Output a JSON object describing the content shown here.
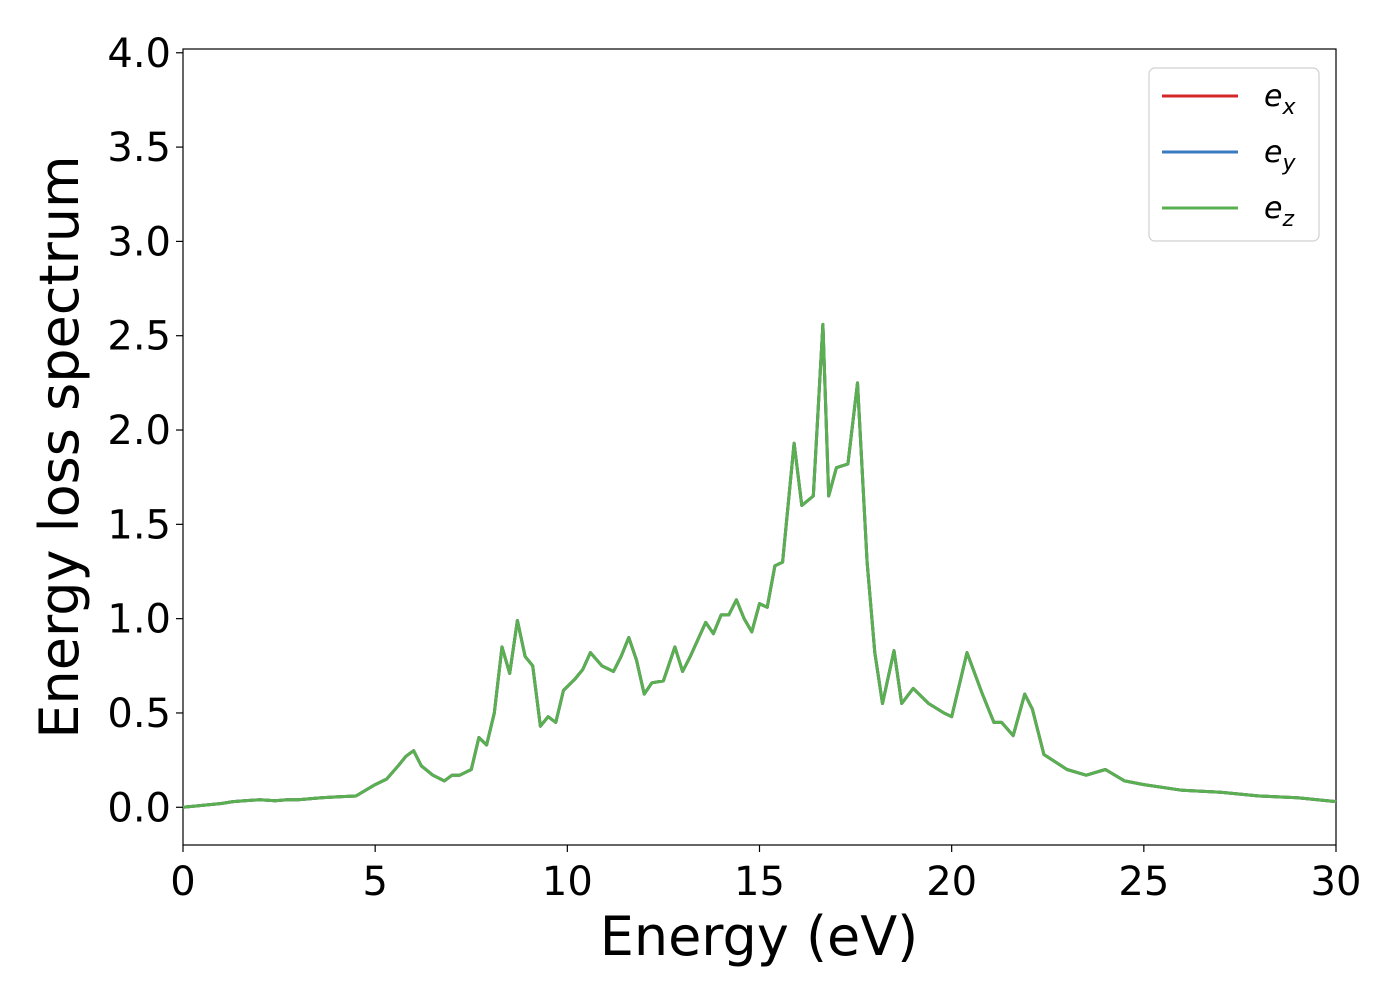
{
  "chart_data": {
    "type": "line",
    "xlabel": "Energy (eV)",
    "ylabel": "Energy loss spectrum",
    "xlim": [
      0,
      30
    ],
    "ylim": [
      -0.2,
      4.02
    ],
    "xticks": [
      0,
      5,
      10,
      15,
      20,
      25,
      30
    ],
    "xtick_labels": [
      "0",
      "5",
      "10",
      "15",
      "20",
      "25",
      "30"
    ],
    "yticks": [
      0.0,
      0.5,
      1.0,
      1.5,
      2.0,
      2.5,
      3.0,
      3.5,
      4.0
    ],
    "ytick_labels": [
      "0.0",
      "0.5",
      "1.0",
      "1.5",
      "2.0",
      "2.5",
      "3.0",
      "3.5",
      "4.0"
    ],
    "grid": false,
    "legend_position": "top-right",
    "series": [
      {
        "name": "e_x",
        "label_base": "e",
        "label_sub": "x",
        "color": "#d62728"
      },
      {
        "name": "e_y",
        "label_base": "e",
        "label_sub": "y",
        "color": "#3a7bbf"
      },
      {
        "name": "e_z",
        "label_base": "e",
        "label_sub": "z",
        "color": "#5aaf50"
      }
    ],
    "x": [
      0,
      0.5,
      1.0,
      1.3,
      1.6,
      2.0,
      2.4,
      2.7,
      3.0,
      3.3,
      3.6,
      4.0,
      4.5,
      5.0,
      5.3,
      5.6,
      5.8,
      6.0,
      6.2,
      6.5,
      6.8,
      7.0,
      7.2,
      7.5,
      7.7,
      7.9,
      8.1,
      8.3,
      8.5,
      8.7,
      8.9,
      9.1,
      9.3,
      9.5,
      9.7,
      9.9,
      10.2,
      10.4,
      10.6,
      10.9,
      11.2,
      11.4,
      11.6,
      11.8,
      12.0,
      12.2,
      12.5,
      12.8,
      13.0,
      13.2,
      13.6,
      13.8,
      14.0,
      14.2,
      14.4,
      14.6,
      14.8,
      15.0,
      15.2,
      15.4,
      15.6,
      15.9,
      16.1,
      16.4,
      16.65,
      16.8,
      17.0,
      17.3,
      17.55,
      17.8,
      18.0,
      18.2,
      18.5,
      18.7,
      19.0,
      19.4,
      19.8,
      20.0,
      20.4,
      20.8,
      21.1,
      21.3,
      21.6,
      21.9,
      22.1,
      22.4,
      23.0,
      23.5,
      24.0,
      24.5,
      25.0,
      26.0,
      27.0,
      28.0,
      29.0,
      30.0
    ],
    "values": [
      0.0,
      0.01,
      0.02,
      0.03,
      0.035,
      0.04,
      0.035,
      0.04,
      0.04,
      0.045,
      0.05,
      0.055,
      0.06,
      0.12,
      0.15,
      0.22,
      0.27,
      0.3,
      0.22,
      0.17,
      0.14,
      0.17,
      0.17,
      0.2,
      0.37,
      0.33,
      0.5,
      0.85,
      0.71,
      0.99,
      0.8,
      0.75,
      0.43,
      0.48,
      0.45,
      0.62,
      0.68,
      0.73,
      0.82,
      0.75,
      0.72,
      0.8,
      0.9,
      0.78,
      0.6,
      0.66,
      0.67,
      0.85,
      0.72,
      0.8,
      0.98,
      0.92,
      1.02,
      1.02,
      1.1,
      1.0,
      0.93,
      1.08,
      1.06,
      1.28,
      1.3,
      1.93,
      1.6,
      1.65,
      2.56,
      1.65,
      1.8,
      1.82,
      2.25,
      1.3,
      0.82,
      0.55,
      0.83,
      0.55,
      0.63,
      0.55,
      0.5,
      0.48,
      0.82,
      0.6,
      0.45,
      0.45,
      0.38,
      0.6,
      0.52,
      0.28,
      0.2,
      0.17,
      0.2,
      0.14,
      0.12,
      0.09,
      0.08,
      0.06,
      0.05,
      0.03
    ]
  }
}
